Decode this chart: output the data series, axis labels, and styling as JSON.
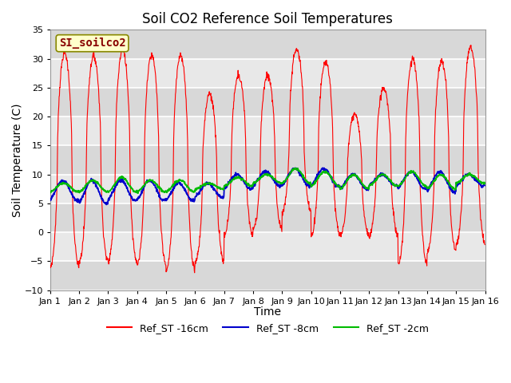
{
  "title": "Soil CO2 Reference Soil Temperatures",
  "xlabel": "Time",
  "ylabel": "Soil Temperature (C)",
  "ylim": [
    -10,
    35
  ],
  "xlim": [
    0,
    15
  ],
  "xtick_labels": [
    "Jan 1",
    "Jan 2",
    "Jan 3",
    "Jan 4",
    "Jan 5",
    "Jan 6",
    "Jan 7",
    "Jan 8",
    "Jan 9",
    "Jan 10",
    "Jan 11",
    "Jan 12",
    "Jan 13",
    "Jan 14",
    "Jan 15",
    "Jan 16"
  ],
  "legend_labels": [
    "Ref_ST -16cm",
    "Ref_ST -8cm",
    "Ref_ST -2cm"
  ],
  "colors": {
    "red": "#ff0000",
    "blue": "#0000cc",
    "green": "#00bb00"
  },
  "watermark_text": "SI_soilco2",
  "watermark_bg": "#ffffcc",
  "watermark_border": "#888800",
  "bg_color": "#e0e0e0",
  "grid_color": "#ffffff",
  "red_peaks": [
    31,
    30.5,
    31.5,
    30.5,
    30.5,
    24,
    27,
    27,
    31.5,
    29.5,
    20.5,
    25,
    30,
    29.5,
    32
  ],
  "red_troughs": [
    -6,
    -5,
    -5,
    -5.5,
    -6.5,
    -5,
    -0.5,
    0.5,
    3.5,
    -0.5,
    -0.5,
    -0.5,
    -5.5,
    -3.5,
    -2
  ],
  "blue_peaks": [
    9,
    9,
    9,
    9,
    8.5,
    8.5,
    10,
    10.5,
    11,
    11,
    10,
    10,
    10.5,
    10.5,
    10
  ],
  "blue_troughs": [
    5.5,
    5,
    5.5,
    5.5,
    5.5,
    6,
    7.5,
    8,
    8,
    8,
    7.5,
    8,
    7.5,
    7,
    8
  ],
  "green_peaks": [
    8.5,
    9,
    9.5,
    9,
    9,
    8.5,
    9.5,
    10,
    11,
    10.5,
    10,
    10,
    10.5,
    10,
    10
  ],
  "green_troughs": [
    7,
    7,
    7,
    7,
    7,
    7.5,
    8,
    8.5,
    8.5,
    8,
    7.5,
    8,
    8,
    7.5,
    8.5
  ],
  "n_per_day": 100,
  "days": 15
}
